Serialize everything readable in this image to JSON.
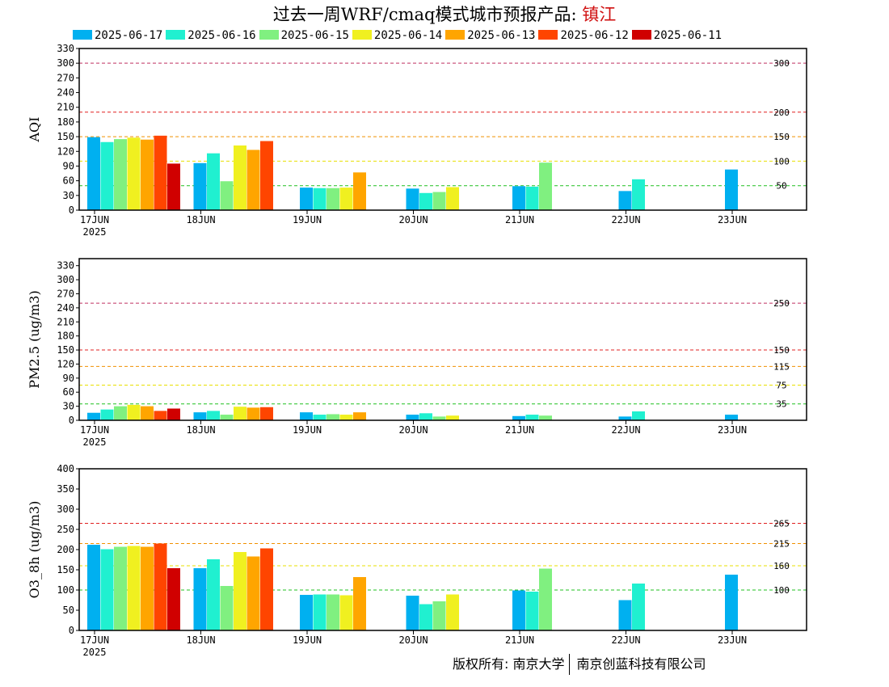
{
  "title": {
    "main": "过去一周WRF/cmaq模式城市预报产品: ",
    "city": "镇江"
  },
  "legend": [
    {
      "label": "2025-06-17",
      "color": "#00b0f0"
    },
    {
      "label": "2025-06-16",
      "color": "#20f0d0"
    },
    {
      "label": "2025-06-15",
      "color": "#80f080"
    },
    {
      "label": "2025-06-14",
      "color": "#f0f020"
    },
    {
      "label": "2025-06-13",
      "color": "#ffa500"
    },
    {
      "label": "2025-06-12",
      "color": "#ff4500"
    },
    {
      "label": "2025-06-11",
      "color": "#d00000"
    }
  ],
  "footer": {
    "left": "版权所有: 南京大学",
    "right": "南京创蓝科技有限公司"
  },
  "chart_data": [
    {
      "type": "bar",
      "ylabel": "AQI",
      "ylim": [
        0,
        330
      ],
      "yticks": [
        0,
        30,
        60,
        90,
        120,
        150,
        180,
        210,
        240,
        270,
        300,
        330
      ],
      "categories": [
        "17JUN",
        "18JUN",
        "19JUN",
        "20JUN",
        "21JUN",
        "22JUN",
        "23JUN"
      ],
      "year_label": "2025",
      "thresholds": [
        {
          "value": 300,
          "label": "300",
          "color": "#c03060"
        },
        {
          "value": 200,
          "label": "200",
          "color": "#e02020"
        },
        {
          "value": 150,
          "label": "150",
          "color": "#f09000"
        },
        {
          "value": 100,
          "label": "100",
          "color": "#e8e000"
        },
        {
          "value": 50,
          "label": "50",
          "color": "#20c020"
        }
      ],
      "groups": [
        {
          "category": "17JUN",
          "values": [
            149,
            139,
            145,
            148,
            144,
            152,
            95
          ]
        },
        {
          "category": "18JUN",
          "values": [
            96,
            116,
            59,
            132,
            123,
            141
          ]
        },
        {
          "category": "19JUN",
          "values": [
            46,
            45,
            45,
            46,
            77
          ]
        },
        {
          "category": "20JUN",
          "values": [
            44,
            35,
            37,
            47
          ]
        },
        {
          "category": "21JUN",
          "values": [
            49,
            48,
            97
          ]
        },
        {
          "category": "22JUN",
          "values": [
            39,
            63
          ]
        },
        {
          "category": "23JUN",
          "values": [
            83
          ]
        }
      ]
    },
    {
      "type": "bar",
      "ylabel": "PM2.5 (ug/m3)",
      "ylim": [
        0,
        345
      ],
      "yticks": [
        0,
        30,
        60,
        90,
        120,
        150,
        180,
        210,
        240,
        270,
        300,
        330
      ],
      "categories": [
        "17JUN",
        "18JUN",
        "19JUN",
        "20JUN",
        "21JUN",
        "22JUN",
        "23JUN"
      ],
      "year_label": "2025",
      "thresholds": [
        {
          "value": 250,
          "label": "250",
          "color": "#c03060"
        },
        {
          "value": 150,
          "label": "150",
          "color": "#e02020"
        },
        {
          "value": 115,
          "label": "115",
          "color": "#f09000"
        },
        {
          "value": 75,
          "label": "75",
          "color": "#e8e000"
        },
        {
          "value": 35,
          "label": "35",
          "color": "#20c020"
        }
      ],
      "groups": [
        {
          "category": "17JUN",
          "values": [
            16,
            23,
            30,
            33,
            30,
            20,
            25
          ]
        },
        {
          "category": "18JUN",
          "values": [
            17,
            20,
            12,
            29,
            27,
            28
          ]
        },
        {
          "category": "19JUN",
          "values": [
            17,
            12,
            13,
            12,
            17
          ]
        },
        {
          "category": "20JUN",
          "values": [
            12,
            15,
            8,
            10
          ]
        },
        {
          "category": "21JUN",
          "values": [
            9,
            12,
            10
          ]
        },
        {
          "category": "22JUN",
          "values": [
            8,
            19
          ]
        },
        {
          "category": "23JUN",
          "values": [
            12
          ]
        }
      ]
    },
    {
      "type": "bar",
      "ylabel": "O3_8h (ug/m3)",
      "ylim": [
        0,
        400
      ],
      "yticks": [
        0,
        50,
        100,
        150,
        200,
        250,
        300,
        350,
        400
      ],
      "categories": [
        "17JUN",
        "18JUN",
        "19JUN",
        "20JUN",
        "21JUN",
        "22JUN",
        "23JUN"
      ],
      "year_label": "2025",
      "thresholds": [
        {
          "value": 265,
          "label": "265",
          "color": "#e02020"
        },
        {
          "value": 215,
          "label": "215",
          "color": "#f09000"
        },
        {
          "value": 160,
          "label": "160",
          "color": "#e8e000"
        },
        {
          "value": 100,
          "label": "100",
          "color": "#20c020"
        }
      ],
      "groups": [
        {
          "category": "17JUN",
          "values": [
            212,
            201,
            207,
            209,
            207,
            215,
            154
          ]
        },
        {
          "category": "18JUN",
          "values": [
            154,
            176,
            110,
            194,
            183,
            203
          ]
        },
        {
          "category": "19JUN",
          "values": [
            88,
            89,
            89,
            87,
            132
          ]
        },
        {
          "category": "20JUN",
          "values": [
            86,
            65,
            72,
            89
          ]
        },
        {
          "category": "21JUN",
          "values": [
            99,
            96,
            153
          ]
        },
        {
          "category": "22JUN",
          "values": [
            75,
            116
          ]
        },
        {
          "category": "23JUN",
          "values": [
            138
          ]
        }
      ]
    }
  ]
}
